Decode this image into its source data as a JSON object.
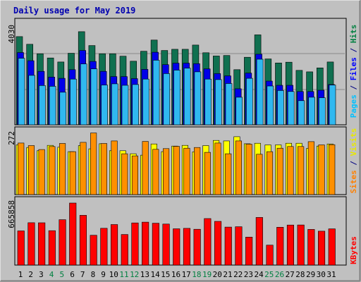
{
  "chart_data": {
    "type": "bar",
    "title": "Daily usage for May 2019",
    "days": [
      "1",
      "2",
      "3",
      "4",
      "5",
      "6",
      "7",
      "8",
      "9",
      "10",
      "11",
      "12",
      "13",
      "14",
      "15",
      "16",
      "17",
      "18",
      "19",
      "20",
      "21",
      "22",
      "23",
      "24",
      "25",
      "26",
      "27",
      "28",
      "29",
      "30",
      "31"
    ],
    "weekend_days": [
      "4",
      "5",
      "11",
      "12",
      "18",
      "19",
      "25",
      "26"
    ],
    "panels": [
      {
        "name": "top",
        "ymax_label": "4030",
        "ymax": 4030,
        "labels": [
          {
            "text": "Pages",
            "color": "#00c0ff"
          },
          {
            "text": " / ",
            "color": "#000080"
          },
          {
            "text": "Files",
            "color": "#0000ff"
          },
          {
            "text": " / ",
            "color": "#000080"
          },
          {
            "text": "Hits",
            "color": "#008040"
          }
        ],
        "series": [
          {
            "name": "Hits",
            "fill": "#107050",
            "values": [
              3550,
              3240,
              2860,
              2690,
              2530,
              2880,
              3750,
              3190,
              2860,
              2860,
              2760,
              2560,
              2960,
              3410,
              2990,
              3040,
              3040,
              3210,
              2900,
              2770,
              2790,
              2220,
              2720,
              3620,
              2650,
              2490,
              2520,
              2190,
              2130,
              2290,
              2530
            ]
          },
          {
            "name": "Files",
            "fill": "#0000e8",
            "values": [
              2910,
              2580,
              2150,
              1920,
              1870,
              2220,
              2990,
              2550,
              2150,
              1940,
              1940,
              1860,
              2230,
              2920,
              2420,
              2480,
              2480,
              2460,
              2250,
              2060,
              1970,
              1450,
              2080,
              2840,
              1760,
              1590,
              1590,
              1340,
              1340,
              1390,
              1620
            ]
          },
          {
            "name": "Pages",
            "fill": "#30b8f0",
            "values": [
              2680,
              1990,
              1580,
              1550,
              1310,
              1840,
              2450,
              2250,
              1600,
              1650,
              1590,
              1620,
              1840,
              2600,
              2060,
              2200,
              2280,
              2130,
              1840,
              1820,
              1660,
              1110,
              1870,
              2640,
              1560,
              1380,
              1340,
              970,
              1110,
              1090,
              1600
            ]
          }
        ]
      },
      {
        "name": "middle",
        "ymax_label": "272",
        "ymax": 272,
        "labels": [
          {
            "text": "Sites",
            "color": "#ff8000"
          },
          {
            "text": " / ",
            "color": "#000080"
          },
          {
            "text": "Visits",
            "color": "#e8e800"
          }
        ],
        "series": [
          {
            "name": "Visits",
            "fill": "#ffff00",
            "values": [
              213,
              202,
              188,
              211,
              203,
              184,
              210,
              196,
              218,
              188,
              188,
              175,
              169,
              217,
              184,
              208,
              211,
              183,
              210,
              232,
              230,
              248,
              218,
              220,
              213,
              213,
              220,
              220,
              198,
              208,
              217
            ]
          },
          {
            "name": "Sites",
            "fill": "#ff9000",
            "values": [
              221,
              210,
              193,
              206,
              219,
              184,
              224,
              264,
              219,
              230,
              175,
              166,
              228,
              194,
              197,
              207,
              199,
              202,
              181,
              221,
              175,
              230,
              216,
              173,
              184,
              199,
              206,
              206,
              227,
              213,
              214
            ]
          }
        ]
      },
      {
        "name": "bottom",
        "ymax_label": "665858",
        "ymax": 665858,
        "labels": [
          {
            "text": "KBytes",
            "color": "#ff0000"
          }
        ],
        "series": [
          {
            "name": "KBytes",
            "fill": "#ff0000",
            "values": [
              351000,
              435000,
              434000,
              353000,
              466000,
              637000,
              511000,
              306000,
              378000,
              416000,
              314000,
              433000,
              441000,
              430000,
              421000,
              373000,
              377000,
              368000,
              478000,
              449000,
              390000,
              394000,
              287000,
              489000,
              205000,
              389000,
              411000,
              412000,
              366000,
              348000,
              372000
            ]
          }
        ]
      }
    ]
  }
}
